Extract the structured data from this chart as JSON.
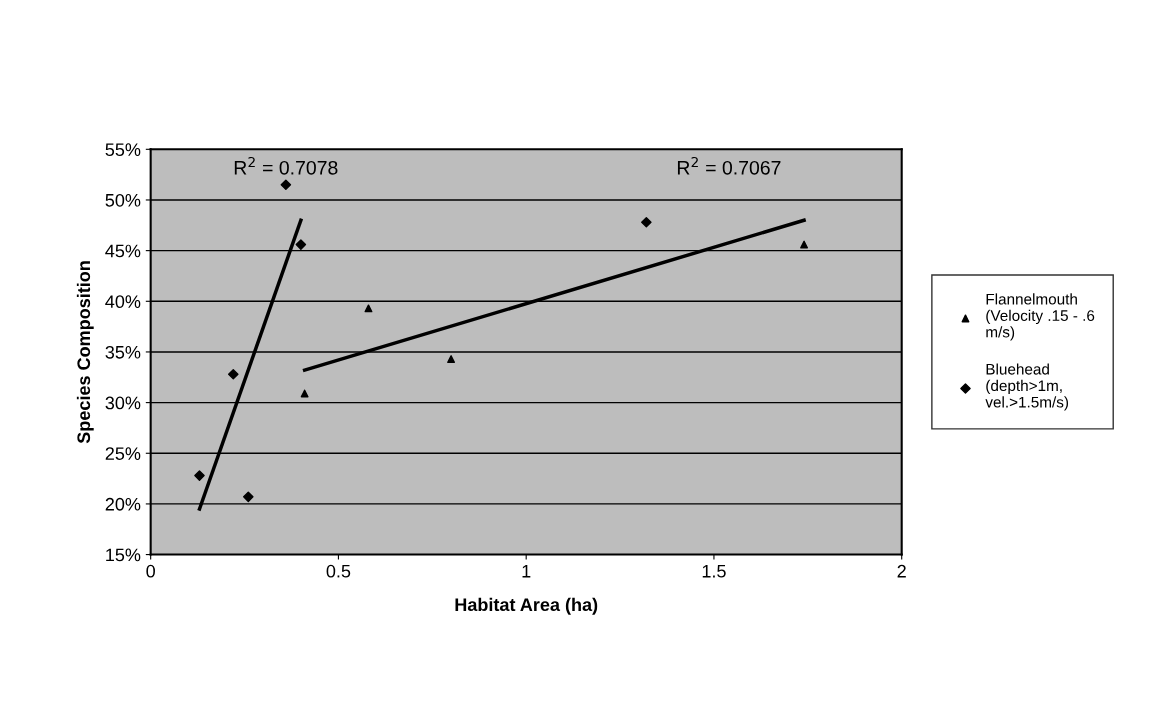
{
  "chart_data": {
    "type": "scatter",
    "xlabel": "Habitat Area (ha)",
    "ylabel": "Species Composition",
    "xlim": [
      0,
      2
    ],
    "xticks": [
      0,
      0.5,
      1,
      1.5,
      2
    ],
    "ylim": [
      15,
      55
    ],
    "yticks": [
      {
        "value": 15,
        "label": "15%"
      },
      {
        "value": 20,
        "label": "20%"
      },
      {
        "value": 25,
        "label": "25%"
      },
      {
        "value": 30,
        "label": "30%"
      },
      {
        "value": 35,
        "label": "35%"
      },
      {
        "value": 40,
        "label": "40%"
      },
      {
        "value": 45,
        "label": "45%"
      },
      {
        "value": 50,
        "label": "50%"
      },
      {
        "value": 55,
        "label": "55%"
      }
    ],
    "grid": "y",
    "legend": "right",
    "series": [
      {
        "name": "Flannelmouth\n(Velocity .15 - .6\nm/s)",
        "color": "#000000",
        "marker": "triangle",
        "x": [
          0.41,
          0.58,
          0.8,
          1.74
        ],
        "values": [
          30.9,
          39.3,
          34.3,
          45.6
        ]
      },
      {
        "name": "Bluehead\n(depth>1m,\nvel.>1.5m/s)",
        "color": "#000000",
        "marker": "diamond",
        "x": [
          0.13,
          0.22,
          0.26,
          0.36,
          0.4,
          1.32
        ],
        "values": [
          22.8,
          32.8,
          20.7,
          51.5,
          45.6,
          47.8
        ]
      },
      {
        "type": "line",
        "color": "#000000",
        "x": [
          0.13,
          0.4
        ],
        "values": [
          19.5,
          48
        ]
      },
      {
        "type": "line",
        "color": "#000000",
        "x": [
          0.41,
          1.74
        ],
        "values": [
          33.2,
          48
        ]
      }
    ],
    "annotations": [
      "R$^{2}$ = 0.7078",
      "R$^{2}$ = 0.7067"
    ]
  }
}
